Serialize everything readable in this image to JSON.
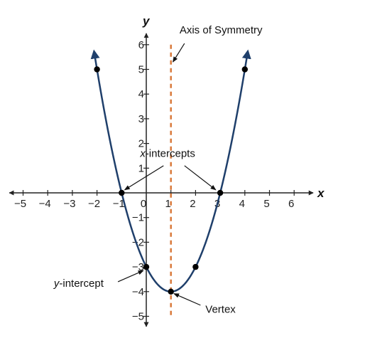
{
  "chart_data": {
    "type": "line",
    "title": "",
    "xlabel": "x",
    "ylabel": "y",
    "xlim": [
      -5.5,
      6.6
    ],
    "ylim": [
      -5.3,
      6.4
    ],
    "x_ticks": [
      -5,
      -4,
      -3,
      -2,
      -1,
      0,
      1,
      2,
      3,
      4,
      5,
      6
    ],
    "y_ticks": [
      -5,
      -4,
      -3,
      -2,
      -1,
      1,
      2,
      3,
      4,
      5,
      6
    ],
    "grid": false,
    "colors": {
      "curve": "#1f3f6b",
      "axis_of_symmetry": "#d9793a",
      "axes": "#222222",
      "points": "#000000"
    },
    "series": [
      {
        "function": "y = x^2 - 2x - 3",
        "x_range": [
          -2.12,
          4.12
        ],
        "arrows_at_ends": true
      }
    ],
    "points": [
      {
        "x": -2,
        "y": 5
      },
      {
        "x": -1,
        "y": 0
      },
      {
        "x": 0,
        "y": -3
      },
      {
        "x": 1,
        "y": -4
      },
      {
        "x": 2,
        "y": -3
      },
      {
        "x": 3,
        "y": 0
      },
      {
        "x": 4,
        "y": 5
      }
    ],
    "axis_of_symmetry": {
      "x": 1,
      "y_range": [
        -5,
        6
      ],
      "style": "dashed"
    },
    "annotations": {
      "axis_of_symmetry": "Axis of Symmetry",
      "x_intercepts_italic": "x",
      "x_intercepts_rest": "-intercepts",
      "y_intercept_italic": "y",
      "y_intercept_rest": "-intercept",
      "vertex": "Vertex"
    }
  }
}
